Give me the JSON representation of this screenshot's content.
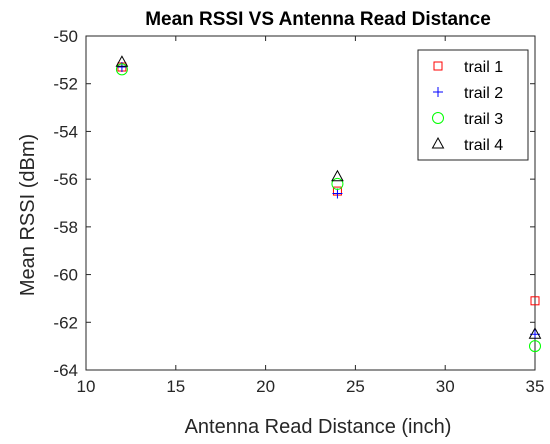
{
  "chart_data": {
    "type": "scatter",
    "title": "Mean RSSI VS Antenna Read Distance",
    "xlabel": "Antenna Read Distance (inch)",
    "ylabel": "Mean RSSI (dBm)",
    "xlim": [
      10,
      35
    ],
    "ylim": [
      -64,
      -50
    ],
    "xticks": [
      10,
      15,
      20,
      25,
      30,
      35
    ],
    "yticks": [
      -64,
      -62,
      -60,
      -58,
      -56,
      -54,
      -52,
      -50
    ],
    "grid": false,
    "legend_position": "top-right",
    "series": [
      {
        "name": "trail 1",
        "marker": "square",
        "color": "#ff0000",
        "x": [
          12,
          24,
          35
        ],
        "y": [
          -51.3,
          -56.5,
          -61.1
        ]
      },
      {
        "name": "trail 2",
        "marker": "plus",
        "color": "#0000ff",
        "x": [
          12,
          24,
          35
        ],
        "y": [
          -51.3,
          -56.6,
          -62.5
        ]
      },
      {
        "name": "trail 3",
        "marker": "circle",
        "color": "#00ff00",
        "x": [
          12,
          24,
          35
        ],
        "y": [
          -51.4,
          -56.2,
          -63.0
        ]
      },
      {
        "name": "trail 4",
        "marker": "triangle",
        "color": "#000000",
        "x": [
          12,
          24,
          35
        ],
        "y": [
          -51.1,
          -55.9,
          -62.5
        ]
      }
    ]
  }
}
